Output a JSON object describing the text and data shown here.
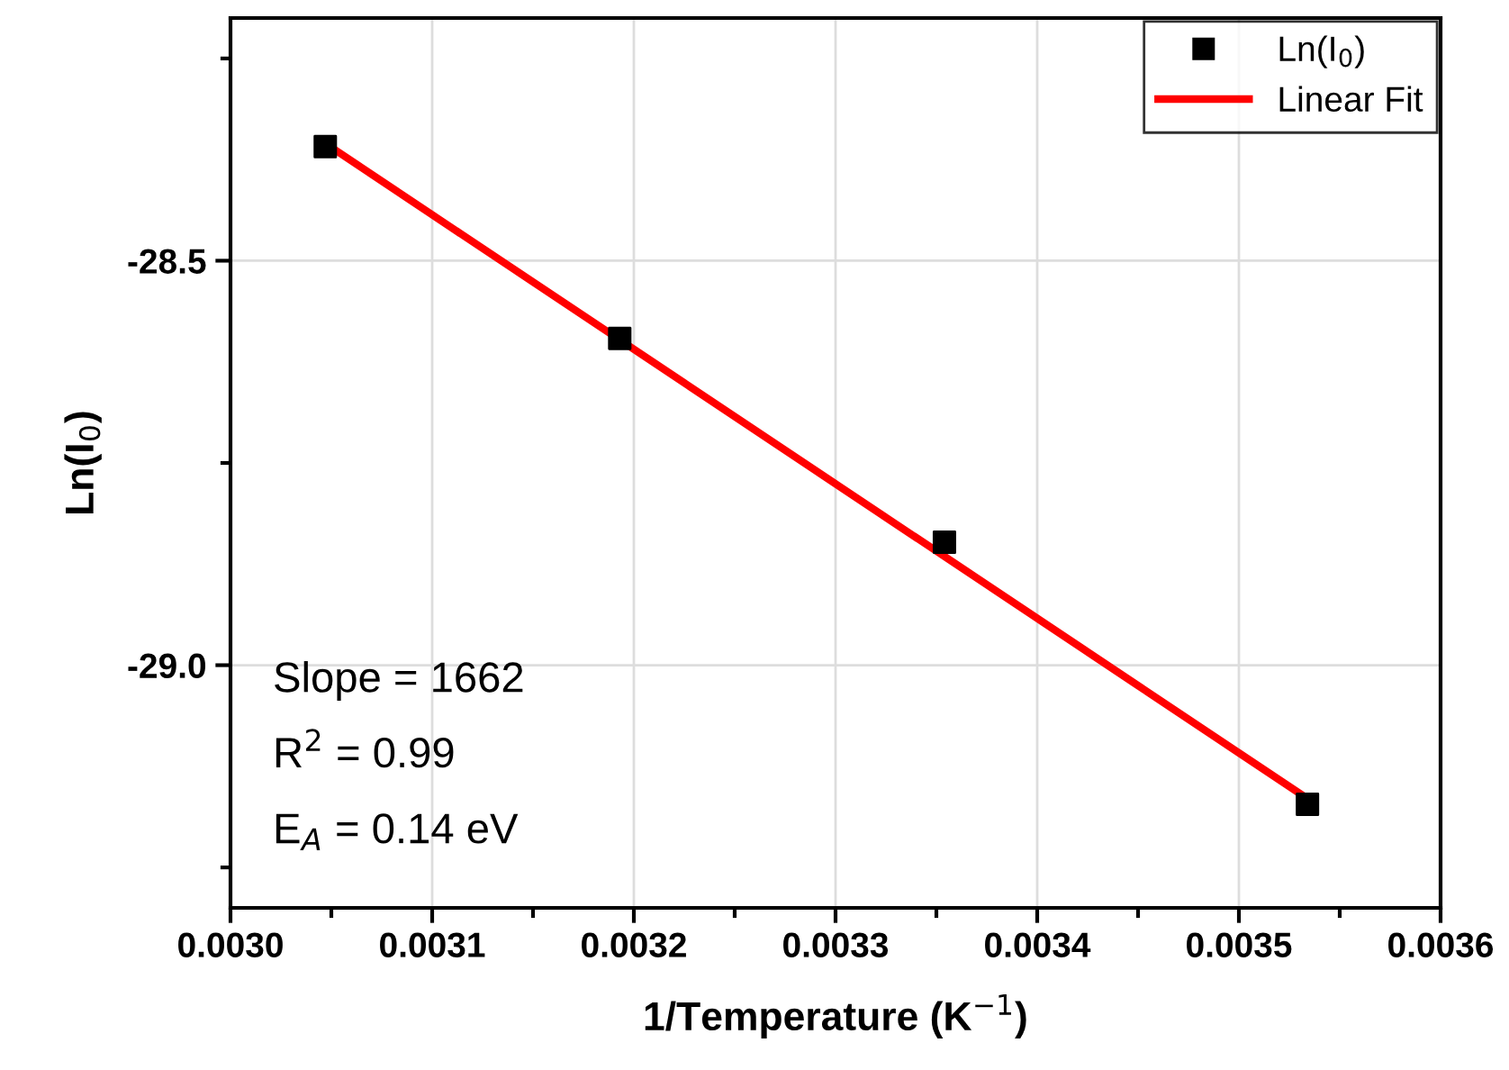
{
  "chart_data": {
    "type": "scatter",
    "xlabel": "1/Temperature (K$^{−1}$)",
    "ylabel": "Ln(I$_{0}$)",
    "xlim": [
      0.003,
      0.0036
    ],
    "xticks": [
      {
        "value": 0.003,
        "label": "0.0030"
      },
      0.0031,
      0.0032,
      0.0033,
      0.0034,
      0.0035,
      0.0036
    ],
    "ylim": [
      -29.3,
      -28.2
    ],
    "yticks": [
      -28.5,
      {
        "value": -29.0,
        "label": "-29.0"
      }
    ],
    "grid": true,
    "legend": "top right",
    "series": [
      {
        "name": "Ln(I$_{0}$)",
        "marker": "square",
        "color": "#000000",
        "x": [
          0.003047,
          0.003193,
          0.003354,
          0.003534
        ],
        "values": [
          -28.359,
          -28.596,
          -28.848,
          -29.172
        ]
      },
      {
        "name": "Linear Fit",
        "type": "line",
        "marker": "none",
        "color": "#ff0000",
        "x": [
          0.003047,
          0.003534
        ],
        "values": [
          -28.355,
          -29.165
        ]
      }
    ],
    "annotations": [
      "Slope = 1662",
      "R$^{2}$ = 0.99",
      "E$_{A}$ = 0.14 eV"
    ]
  }
}
